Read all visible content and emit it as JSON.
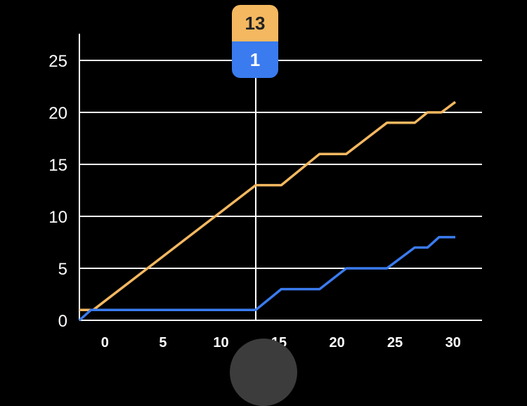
{
  "colors": {
    "series_orange": "#f4b860",
    "series_blue": "#3a7bef",
    "grid": "#ffffff",
    "background": "#000000"
  },
  "tooltip": {
    "top_value": "13",
    "bottom_value": "1"
  },
  "chart_data": {
    "type": "line",
    "xlim": [
      -2.2,
      32.5
    ],
    "ylim": [
      0,
      27
    ],
    "x_ticks": [
      0,
      5,
      10,
      15,
      20,
      25,
      30
    ],
    "y_ticks": [
      0,
      5,
      10,
      15,
      20,
      25
    ],
    "cursor_x": 13,
    "series": [
      {
        "color": "#f4b860",
        "points": [
          [
            -2.2,
            1
          ],
          [
            -1,
            1
          ],
          [
            13,
            13
          ],
          [
            15.2,
            13
          ],
          [
            18.5,
            16
          ],
          [
            20.8,
            16
          ],
          [
            24.3,
            19
          ],
          [
            26.7,
            19
          ],
          [
            27.8,
            20
          ],
          [
            29,
            20
          ],
          [
            30.2,
            21
          ]
        ]
      },
      {
        "color": "#3a7bef",
        "points": [
          [
            -2.2,
            0
          ],
          [
            -1.2,
            1
          ],
          [
            13,
            1
          ],
          [
            15.2,
            3
          ],
          [
            18.5,
            3
          ],
          [
            20.8,
            5
          ],
          [
            24.3,
            5
          ],
          [
            26.7,
            7
          ],
          [
            27.8,
            7
          ],
          [
            28.8,
            8
          ],
          [
            30.2,
            8
          ]
        ]
      }
    ]
  }
}
